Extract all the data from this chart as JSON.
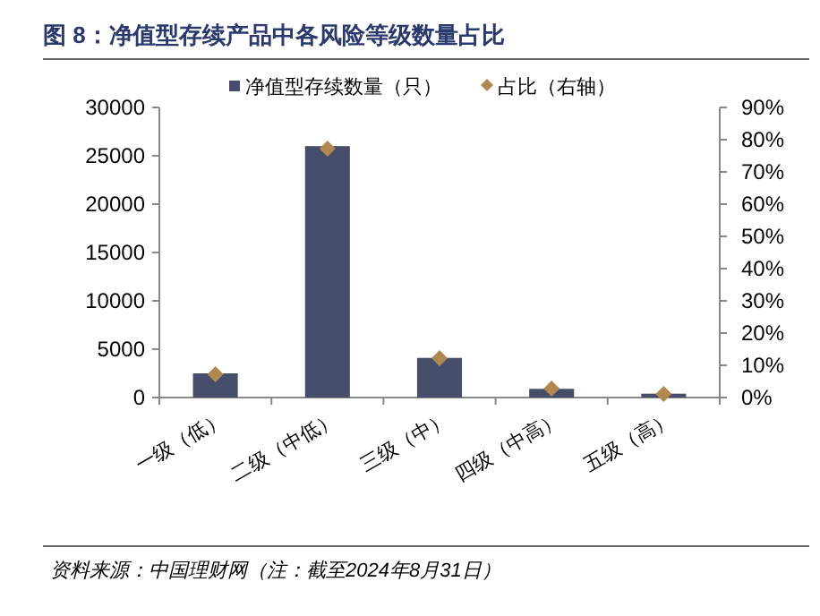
{
  "chart_data": {
    "type": "bar",
    "title": "图 8：净值型存续产品中各风险等级数量占比",
    "categories": [
      "一级（低）",
      "二级（中低）",
      "三级（中）",
      "四级（中高）",
      "五级（高）"
    ],
    "series": [
      {
        "name": "净值型存续数量（只）",
        "color": "#464e6c",
        "values": [
          2500,
          26000,
          4100,
          900,
          400
        ]
      },
      {
        "name": "占比（右轴）",
        "type": "scatter",
        "axis": "y2",
        "marker": "diamond",
        "color": "#b08850",
        "values": [
          7.2,
          77.2,
          12.2,
          2.8,
          1.1
        ]
      }
    ],
    "ylim": [
      0,
      30000
    ],
    "yticks": [
      0,
      5000,
      10000,
      15000,
      20000,
      25000,
      30000
    ],
    "y2lim": [
      0,
      90
    ],
    "y2ticks": [
      {
        "value": 0,
        "label": "0%"
      },
      {
        "value": 10,
        "label": "10%"
      },
      {
        "value": 20,
        "label": "20%"
      },
      {
        "value": 30,
        "label": "30%"
      },
      {
        "value": 40,
        "label": "40%"
      },
      {
        "value": 50,
        "label": "50%"
      },
      {
        "value": 60,
        "label": "60%"
      },
      {
        "value": 70,
        "label": "70%"
      },
      {
        "value": 80,
        "label": "80%"
      },
      {
        "value": 90,
        "label": "90%"
      }
    ],
    "legend": "top",
    "annotations": [
      "资料来源：中国理财网（注：截至2024年8月31日）"
    ]
  }
}
